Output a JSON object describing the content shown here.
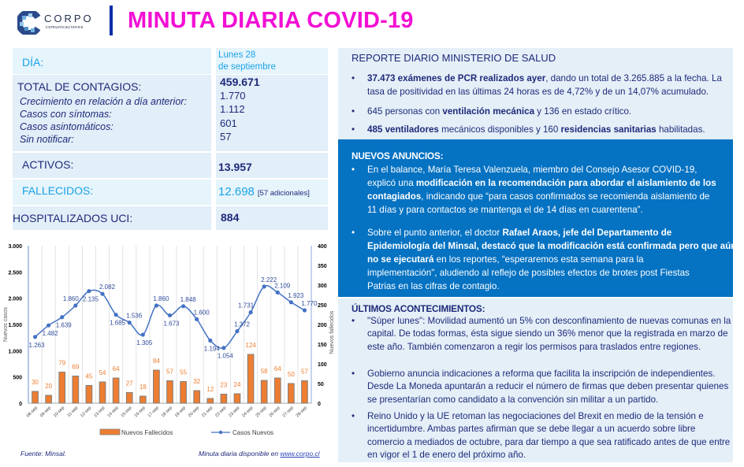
{
  "header": {
    "logo_name": "CORPO",
    "logo_sub": "comunicaciones",
    "title": "MINUTA DIARIA COVID-19"
  },
  "stats": {
    "dia_label": "DÍA:",
    "dia_value_line1": "Lunes 28",
    "dia_value_line2": "de septiembre",
    "total_label": "TOTAL DE CONTAGIOS:",
    "total_value": "459.671",
    "sub_items": [
      {
        "label": "Crecimiento en relación a día anterior:",
        "value": "1.770"
      },
      {
        "label": "Casos con síntomas:",
        "value": "1.112"
      },
      {
        "label": "Casos asintomáticos:",
        "value": "601"
      },
      {
        "label": "Sin notificar:",
        "value": "57"
      }
    ],
    "activos_label": "ACTIVOS:",
    "activos_value": "13.957",
    "fallecidos_label": "FALLECIDOS:",
    "fallecidos_value": "12.698",
    "fallecidos_note": "[57 adicionales]",
    "uci_label": "HOSPITALIZADOS UCI:",
    "uci_value": "884"
  },
  "chart_data": {
    "type": "bar",
    "title": "",
    "categories": [
      "08-sep",
      "09-sep",
      "10-sep",
      "11-sep",
      "12-sep",
      "13-sep",
      "14-sep",
      "15-sep",
      "16-sep",
      "17-sep",
      "18-sep",
      "19-sep",
      "20-sep",
      "21-sep",
      "22-sep",
      "23-sep",
      "24-sep",
      "25-sep",
      "26-sep",
      "27-sep",
      "28-sep"
    ],
    "series": [
      {
        "name": "Nuevos Fallecidos",
        "type": "bar",
        "axis": "right",
        "color": "#ed7d31",
        "values": [
          30,
          20,
          79,
          69,
          45,
          54,
          64,
          27,
          18,
          84,
          57,
          55,
          32,
          12,
          23,
          24,
          124,
          58,
          64,
          50,
          57
        ]
      },
      {
        "name": "Casos Nuevos",
        "type": "line",
        "axis": "left",
        "color": "#4472c4",
        "values": [
          1263,
          1482,
          1639,
          1860,
          2135,
          2082,
          1685,
          1536,
          1305,
          1860,
          1673,
          1848,
          1600,
          1194,
          1054,
          1372,
          1731,
          2222,
          2109,
          1923,
          1770
        ],
        "labels": [
          "1.263",
          "1.482",
          "1.639",
          "1.860",
          "2.135",
          "2.082",
          "1.685",
          "1.536",
          "1.305",
          "1.860",
          "1.673",
          "1.848",
          "1.600",
          "1.194",
          "1.054",
          "1.372",
          "1.731",
          "2.222",
          "2.109",
          "1.923",
          "1.770"
        ]
      }
    ],
    "ylabel": "Nuevos casos",
    "y2label": "Nuevos fallecidos",
    "ylim": [
      0,
      3000
    ],
    "y2lim": [
      0,
      400
    ],
    "yticks": [
      "0",
      "500",
      "1.000",
      "1.500",
      "2.000",
      "2.500",
      "3.000"
    ],
    "y2ticks": [
      "0",
      "50",
      "100",
      "150",
      "200",
      "250",
      "300",
      "350",
      "400"
    ],
    "grid": true,
    "legend_position": "bottom",
    "legend": [
      "Nuevos Fallecidos",
      "Casos Nuevos"
    ]
  },
  "footer": {
    "source": "Fuente: Minsal.",
    "avail_text": "Minuta diaria disponible en ",
    "avail_link": "www.corpo.cl"
  },
  "reporte": {
    "title": "REPORTE DIARIO MINISTERIO DE SALUD",
    "bullet": "•",
    "items": [
      {
        "bold": "37.473 exámenes de PCR realizados ayer",
        "text1": ", dando un total de 3.265.885  a la fecha. La",
        "line2": "tasa de positividad en las últimas 24 horas es de 4,72% y de un 14,07% acumulado."
      },
      {
        "text1": "645 personas con ",
        "bold": "ventilación mecánica",
        "text2": " y 136 en estado crítico."
      },
      {
        "bold": "485 ventiladores",
        "text1": " mecánicos disponibles y 160 ",
        "bold2": "residencias sanitarias",
        "text2": " habilitadas."
      }
    ]
  },
  "anuncios": {
    "title": "NUEVOS ANUNCIOS:",
    "item1": {
      "l1": "En el balance, María Teresa Valenzuela, miembro del Consejo Asesor COVID-19,",
      "l2a": "explicó una ",
      "l2b": "modificación en la recomendación para abordar el aislamiento de los",
      "l3a": "contagiados",
      "l3b": ", indicando que “para casos confirmados se recomienda aislamiento de",
      "l4": "11 días y para contactos se mantenga el de 14 días en cuarentena”."
    },
    "item2": {
      "l1a": "Sobre el punto anterior, el doctor ",
      "l1b": "Rafael Araos, jefe del Departamento de",
      "l2": "Epidemiología del Minsal, destacó que la modificación está confirmada pero que aún",
      "l3a": "no se ejecutará",
      "l3b": " en los reportes, “esperaremos esta semana para la",
      "l4": "implementación\", aludiendo al reflejo de posibles efectos de brotes post Fiestas",
      "l5": "Patrias en las cifras de contagio."
    }
  },
  "ultimos": {
    "title": "ÚLTIMOS ACONTECIMIENTOS:",
    "items": [
      {
        "lines": [
          "\"Súper lunes\": Movilidad aumentó un 5% con desconfinamiento de nuevas comunas en la",
          "capital. De todas formas, ésta sigue siendo un 36% menor que la registrada en marzo de",
          "este año. También comenzaron a regir los permisos para traslados entre regiones."
        ]
      },
      {
        "lines": [
          "Gobierno anuncia indicaciones a reforma que facilita la inscripción de independientes.",
          "Desde La Moneda apuntarán a reducir el número de firmas que deben presentar quienes",
          "se presentarían como candidato a la convención sin militar a un partido."
        ]
      },
      {
        "lines": [
          "Reino Unido y la UE retoman las negociaciones del Brexit en medio de la tensión e",
          "incertidumbre. Ambas partes afirman que se debe llegar a un acuerdo sobre libre",
          "comercio a mediados de octubre, para dar tiempo a que sea ratificado antes de que entre",
          "en vigor el 1 de enero del próximo año."
        ]
      }
    ]
  },
  "colors": {
    "title_magenta": "#f20fd4",
    "header_bar": "#0a2ea8",
    "navy_text": "#1f2a7a",
    "cyan_text": "#1aa3e8",
    "panel_blue": "#0572c2",
    "panel_light": "#e4eff8",
    "bar_orange": "#ed7d31",
    "line_blue": "#4472c4"
  }
}
